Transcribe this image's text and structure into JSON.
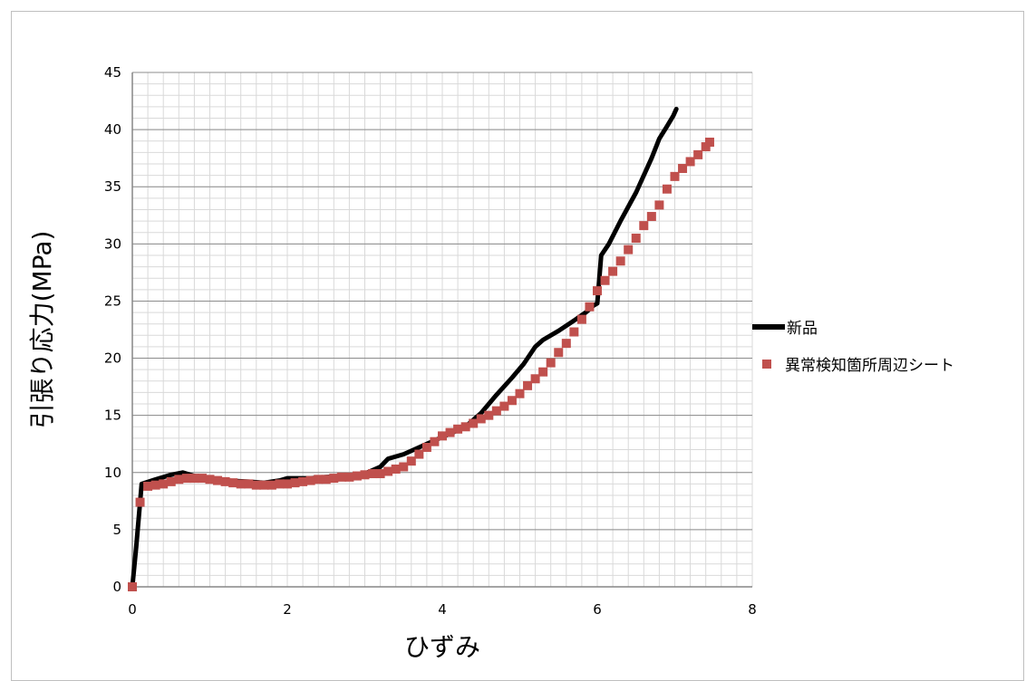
{
  "chart_data": {
    "type": "scatter",
    "title": "",
    "xlabel": "ひずみ",
    "ylabel": "引張り応力(MPa)",
    "xlim": [
      0,
      8
    ],
    "ylim": [
      0,
      45
    ],
    "x_ticks": [
      "0",
      "2",
      "4",
      "6",
      "8"
    ],
    "y_ticks": [
      "0",
      "5",
      "10",
      "15",
      "20",
      "25",
      "30",
      "35",
      "40",
      "45"
    ],
    "grid": true,
    "legend_position": "right",
    "series": [
      {
        "name": "新品",
        "style": "line",
        "color": "#000000",
        "points": [
          [
            0.0,
            0.0
          ],
          [
            0.05,
            3.5
          ],
          [
            0.12,
            9.0
          ],
          [
            0.3,
            9.4
          ],
          [
            0.5,
            9.8
          ],
          [
            0.65,
            10.0
          ],
          [
            0.8,
            9.7
          ],
          [
            1.0,
            9.5
          ],
          [
            1.2,
            9.3
          ],
          [
            1.5,
            9.2
          ],
          [
            1.7,
            9.1
          ],
          [
            1.9,
            9.3
          ],
          [
            2.0,
            9.5
          ],
          [
            2.3,
            9.5
          ],
          [
            2.5,
            9.6
          ],
          [
            2.8,
            9.7
          ],
          [
            3.0,
            9.9
          ],
          [
            3.2,
            10.5
          ],
          [
            3.3,
            11.2
          ],
          [
            3.5,
            11.6
          ],
          [
            3.7,
            12.2
          ],
          [
            3.9,
            12.8
          ],
          [
            4.1,
            13.4
          ],
          [
            4.3,
            14.0
          ],
          [
            4.5,
            15.2
          ],
          [
            4.7,
            16.8
          ],
          [
            4.9,
            18.3
          ],
          [
            5.05,
            19.5
          ],
          [
            5.2,
            21.0
          ],
          [
            5.3,
            21.6
          ],
          [
            5.5,
            22.4
          ],
          [
            5.7,
            23.3
          ],
          [
            5.85,
            24.0
          ],
          [
            5.95,
            24.6
          ],
          [
            6.0,
            24.8
          ],
          [
            6.05,
            29.0
          ],
          [
            6.15,
            30.0
          ],
          [
            6.3,
            32.0
          ],
          [
            6.5,
            34.5
          ],
          [
            6.7,
            37.5
          ],
          [
            6.8,
            39.2
          ],
          [
            6.9,
            40.3
          ],
          [
            6.98,
            41.2
          ],
          [
            7.02,
            41.8
          ]
        ]
      },
      {
        "name": "異常検知箇所周辺シート",
        "style": "markers",
        "color": "#c0504d",
        "points": [
          [
            0.0,
            0.0
          ],
          [
            0.1,
            7.4
          ],
          [
            0.2,
            8.8
          ],
          [
            0.3,
            8.9
          ],
          [
            0.4,
            9.0
          ],
          [
            0.5,
            9.2
          ],
          [
            0.6,
            9.4
          ],
          [
            0.7,
            9.5
          ],
          [
            0.8,
            9.5
          ],
          [
            0.9,
            9.5
          ],
          [
            1.0,
            9.4
          ],
          [
            1.1,
            9.3
          ],
          [
            1.2,
            9.2
          ],
          [
            1.3,
            9.1
          ],
          [
            1.4,
            9.0
          ],
          [
            1.5,
            9.0
          ],
          [
            1.6,
            8.9
          ],
          [
            1.7,
            8.9
          ],
          [
            1.8,
            8.9
          ],
          [
            1.9,
            9.0
          ],
          [
            2.0,
            9.0
          ],
          [
            2.1,
            9.1
          ],
          [
            2.2,
            9.2
          ],
          [
            2.3,
            9.3
          ],
          [
            2.4,
            9.4
          ],
          [
            2.5,
            9.4
          ],
          [
            2.6,
            9.5
          ],
          [
            2.7,
            9.6
          ],
          [
            2.8,
            9.6
          ],
          [
            2.9,
            9.7
          ],
          [
            3.0,
            9.8
          ],
          [
            3.1,
            9.9
          ],
          [
            3.2,
            9.9
          ],
          [
            3.3,
            10.1
          ],
          [
            3.4,
            10.3
          ],
          [
            3.5,
            10.5
          ],
          [
            3.6,
            11.0
          ],
          [
            3.7,
            11.6
          ],
          [
            3.8,
            12.2
          ],
          [
            3.9,
            12.7
          ],
          [
            4.0,
            13.2
          ],
          [
            4.1,
            13.5
          ],
          [
            4.2,
            13.8
          ],
          [
            4.3,
            14.0
          ],
          [
            4.4,
            14.3
          ],
          [
            4.5,
            14.7
          ],
          [
            4.6,
            15.0
          ],
          [
            4.7,
            15.4
          ],
          [
            4.8,
            15.8
          ],
          [
            4.9,
            16.3
          ],
          [
            5.0,
            16.9
          ],
          [
            5.1,
            17.6
          ],
          [
            5.2,
            18.2
          ],
          [
            5.3,
            18.8
          ],
          [
            5.4,
            19.6
          ],
          [
            5.5,
            20.5
          ],
          [
            5.6,
            21.3
          ],
          [
            5.7,
            22.3
          ],
          [
            5.8,
            23.4
          ],
          [
            5.9,
            24.5
          ],
          [
            6.0,
            25.9
          ],
          [
            6.1,
            26.8
          ],
          [
            6.2,
            27.6
          ],
          [
            6.3,
            28.5
          ],
          [
            6.4,
            29.5
          ],
          [
            6.5,
            30.5
          ],
          [
            6.6,
            31.6
          ],
          [
            6.7,
            32.4
          ],
          [
            6.8,
            33.4
          ],
          [
            6.9,
            34.8
          ],
          [
            7.0,
            35.9
          ],
          [
            7.1,
            36.6
          ],
          [
            7.2,
            37.2
          ],
          [
            7.3,
            37.8
          ],
          [
            7.4,
            38.5
          ],
          [
            7.45,
            38.9
          ]
        ]
      }
    ]
  }
}
